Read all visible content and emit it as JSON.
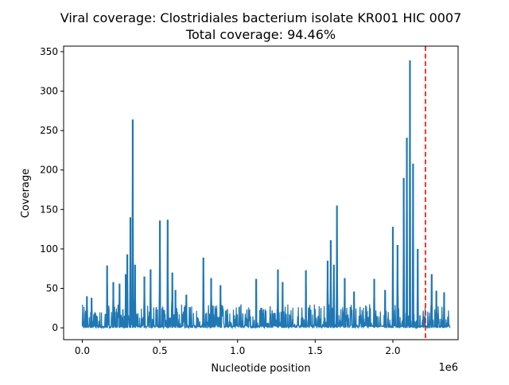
{
  "chart_data": {
    "type": "line",
    "title": "Viral coverage: Clostridiales bacterium isolate KR001 HIC 0007",
    "subtitle": "Total coverage: 94.46%",
    "xlabel": "Nucleotide position",
    "ylabel": "Coverage",
    "x_offset_label": "1e6",
    "xlim": [
      -0.12,
      2.42
    ],
    "ylim": [
      -15,
      357
    ],
    "x_ticks": [
      0.0,
      0.5,
      1.0,
      1.5,
      2.0
    ],
    "x_tick_labels": [
      "0.0",
      "0.5",
      "1.0",
      "1.5",
      "2.0"
    ],
    "y_ticks": [
      0,
      50,
      100,
      150,
      200,
      250,
      300,
      350
    ],
    "y_tick_labels": [
      "0",
      "50",
      "100",
      "150",
      "200",
      "250",
      "300",
      "350"
    ],
    "grid": false,
    "legend": "none",
    "line_color": "#1f77b4",
    "x_max": 2.37,
    "baseline_band": [
      0,
      30
    ],
    "peaks": [
      [
        0.03,
        40
      ],
      [
        0.06,
        38
      ],
      [
        0.16,
        79
      ],
      [
        0.2,
        58
      ],
      [
        0.24,
        56
      ],
      [
        0.28,
        68
      ],
      [
        0.29,
        93
      ],
      [
        0.31,
        140
      ],
      [
        0.325,
        264
      ],
      [
        0.34,
        80
      ],
      [
        0.4,
        65
      ],
      [
        0.44,
        74
      ],
      [
        0.5,
        136
      ],
      [
        0.55,
        137
      ],
      [
        0.58,
        70
      ],
      [
        0.6,
        48
      ],
      [
        0.67,
        42
      ],
      [
        0.78,
        89
      ],
      [
        0.83,
        63
      ],
      [
        0.89,
        54
      ],
      [
        1.12,
        62
      ],
      [
        1.26,
        74
      ],
      [
        1.29,
        58
      ],
      [
        1.44,
        73
      ],
      [
        1.58,
        85
      ],
      [
        1.6,
        111
      ],
      [
        1.62,
        80
      ],
      [
        1.64,
        155
      ],
      [
        1.69,
        63
      ],
      [
        1.75,
        46
      ],
      [
        1.88,
        62
      ],
      [
        1.95,
        48
      ],
      [
        2.0,
        128
      ],
      [
        2.03,
        105
      ],
      [
        2.07,
        190
      ],
      [
        2.09,
        241
      ],
      [
        2.11,
        339
      ],
      [
        2.13,
        208
      ],
      [
        2.16,
        100
      ],
      [
        2.25,
        68
      ],
      [
        2.28,
        47
      ],
      [
        2.33,
        45
      ]
    ],
    "annotations": [
      {
        "type": "vertical_line",
        "x": 2.21,
        "color": "#ff0000",
        "style": "dashed"
      }
    ]
  }
}
